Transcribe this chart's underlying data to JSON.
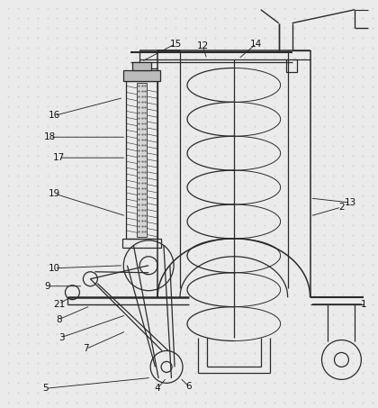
{
  "bg_color": "#ebebeb",
  "line_color": "#2a2a2a",
  "label_color": "#111111",
  "fig_width": 4.2,
  "fig_height": 4.53,
  "dpi": 100
}
